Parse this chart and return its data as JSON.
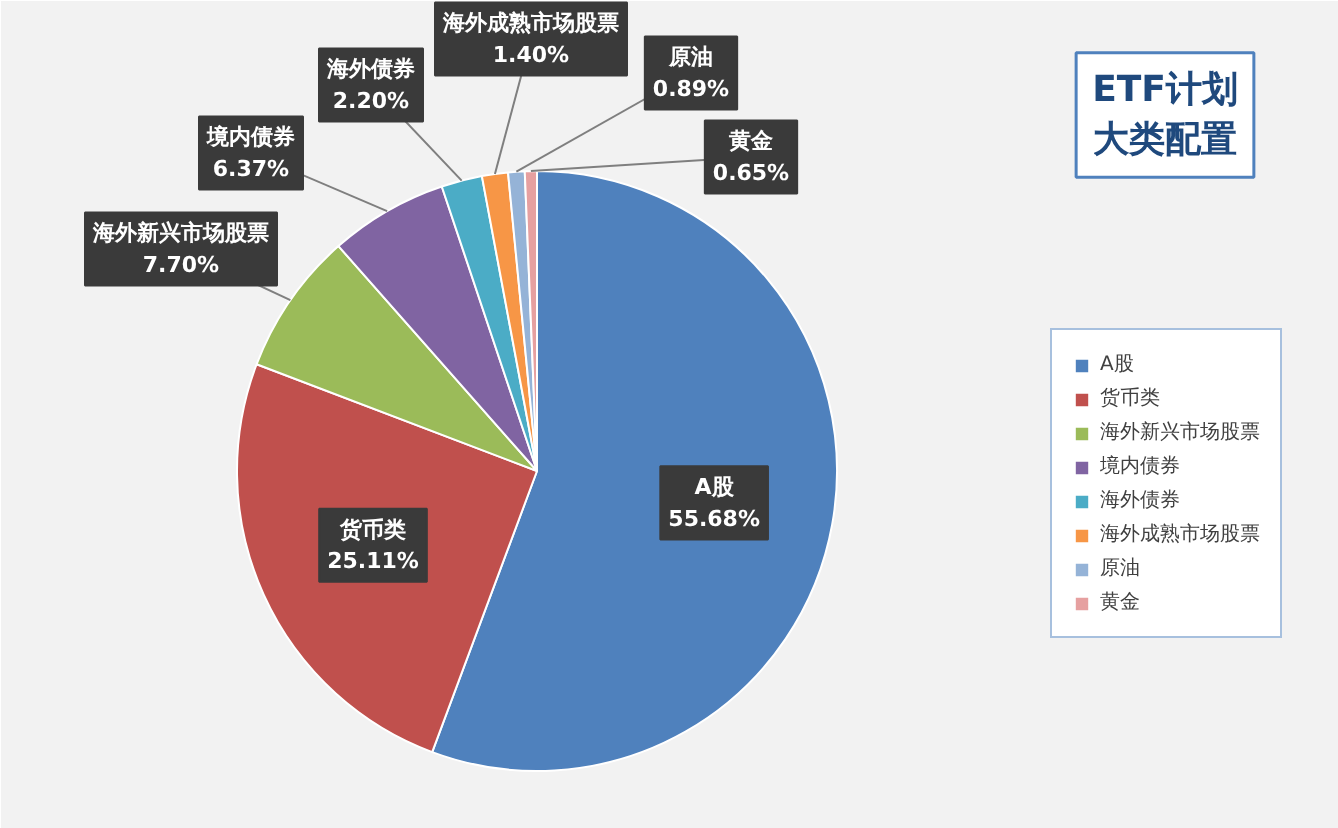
{
  "chart_data": {
    "type": "pie",
    "title": "ETF计划大类配置",
    "categories": [
      "A股",
      "货币类",
      "海外新兴市场股票",
      "境内债券",
      "海外债券",
      "海外成熟市场股票",
      "原油",
      "黄金"
    ],
    "values": [
      55.68,
      25.11,
      7.7,
      6.37,
      2.2,
      1.4,
      0.89,
      0.65
    ],
    "value_labels": [
      "55.68%",
      "25.11%",
      "7.70%",
      "6.37%",
      "2.20%",
      "1.40%",
      "0.89%",
      "0.65%"
    ],
    "colors": [
      "#4f81bd",
      "#c0504d",
      "#9bbb59",
      "#8064a2",
      "#4bacc6",
      "#f79646",
      "#95b3d7",
      "#e6a0a0"
    ],
    "legend": "right"
  }
}
